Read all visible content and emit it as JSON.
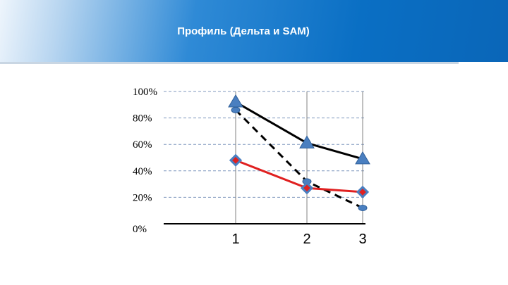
{
  "header": {
    "title": "Профиль (Дельта и SAM)"
  },
  "chart_data": {
    "type": "line",
    "categories": [
      "1",
      "2",
      "3"
    ],
    "ylim": [
      0,
      100
    ],
    "y_ticks": [
      "0%",
      "20%",
      "40%",
      "60%",
      "80%",
      "100%"
    ],
    "grid": true,
    "series": [
      {
        "values": [
          92,
          61,
          49
        ],
        "color": "#000000",
        "marker": "triangle",
        "marker_color": "#4a7fc0",
        "line_style": "solid"
      },
      {
        "values": [
          86,
          32,
          12
        ],
        "color": "#000000",
        "marker": "circle",
        "marker_color": "#4a7fc0",
        "line_style": "dashed"
      },
      {
        "values": [
          48,
          27,
          24
        ],
        "color": "#e02020",
        "marker": "diamond",
        "marker_color": "#e02020",
        "line_style": "solid"
      }
    ]
  }
}
